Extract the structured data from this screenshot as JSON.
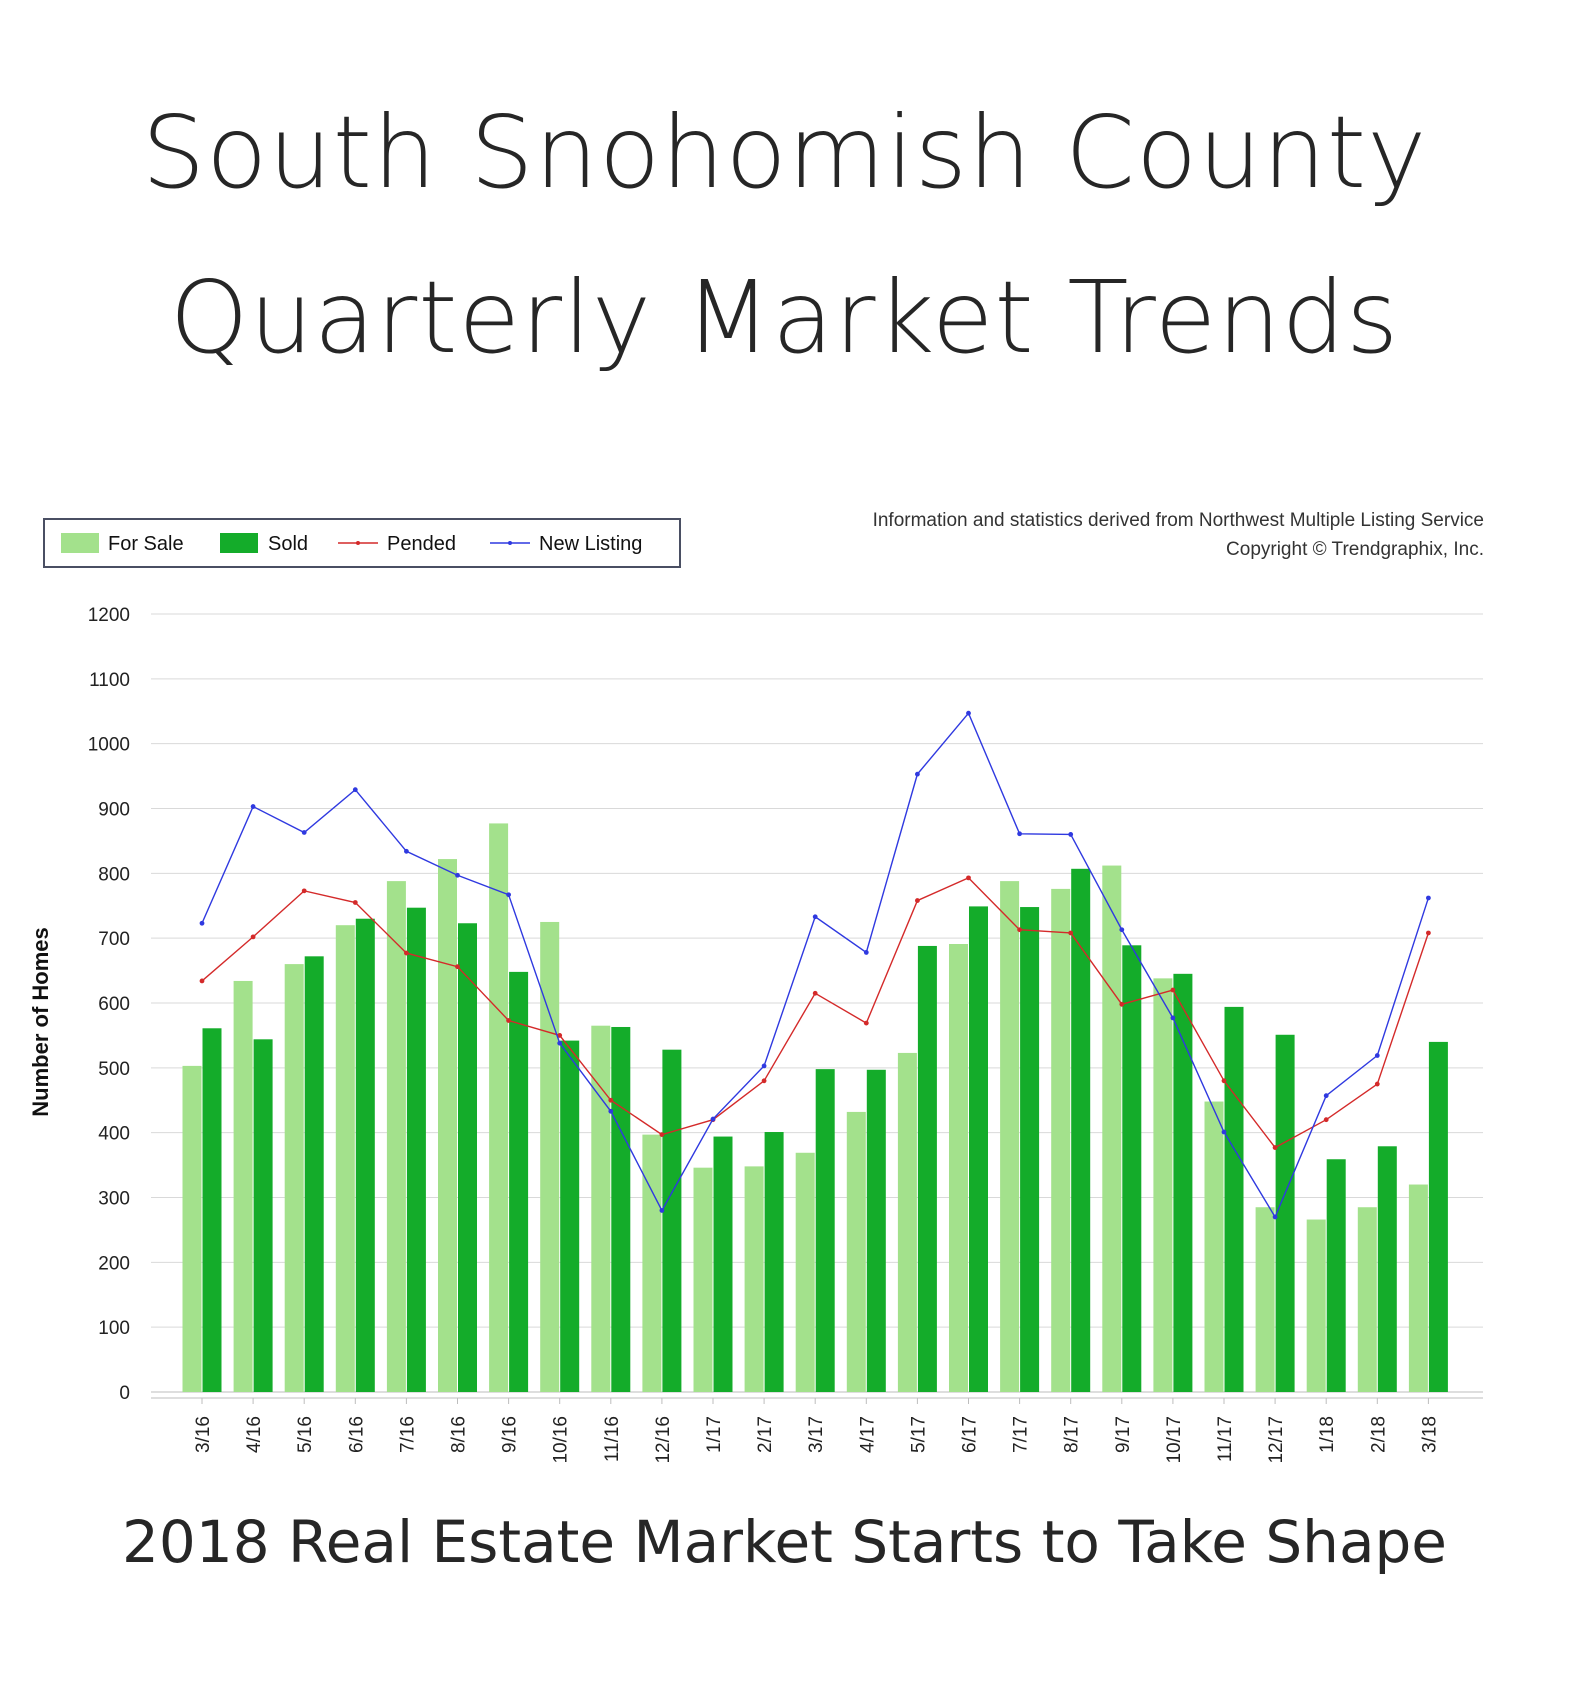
{
  "header": {
    "title_line1": "South Snohomish County",
    "title_line2": "Quarterly Market Trends"
  },
  "source": {
    "line1": "Information and statistics derived from Northwest Multiple Listing Service",
    "line2": "Copyright © Trendgraphix, Inc."
  },
  "footer": {
    "subtitle": "2018 Real Estate Market Starts to Take Shape"
  },
  "colors": {
    "for_sale": "#a3e18c",
    "sold": "#14ac2a",
    "pended": "#d42a2a",
    "new_listing": "#2f39e0",
    "grid": "#d9d9d9"
  },
  "chart_data": {
    "type": "bar",
    "ylabel": "Number of Homes",
    "ylim": [
      0,
      1200
    ],
    "yticks": [
      0,
      100,
      200,
      300,
      400,
      500,
      600,
      700,
      800,
      900,
      1000,
      1100,
      1200
    ],
    "grid": true,
    "legend": "top-left",
    "categories": [
      "3/16",
      "4/16",
      "5/16",
      "6/16",
      "7/16",
      "8/16",
      "9/16",
      "10/16",
      "11/16",
      "12/16",
      "1/17",
      "2/17",
      "3/17",
      "4/17",
      "5/17",
      "6/17",
      "7/17",
      "8/17",
      "9/17",
      "10/17",
      "11/17",
      "12/17",
      "1/18",
      "2/18",
      "3/18"
    ],
    "series": [
      {
        "name": "For Sale",
        "kind": "bar",
        "values": [
          503,
          634,
          660,
          720,
          788,
          822,
          877,
          725,
          565,
          397,
          346,
          348,
          369,
          432,
          523,
          691,
          788,
          776,
          812,
          638,
          448,
          285,
          266,
          285,
          320
        ]
      },
      {
        "name": "Sold",
        "kind": "bar",
        "values": [
          561,
          544,
          672,
          730,
          747,
          723,
          648,
          542,
          563,
          528,
          394,
          401,
          498,
          497,
          688,
          749,
          748,
          807,
          689,
          645,
          594,
          551,
          359,
          379,
          540
        ]
      },
      {
        "name": "Pended",
        "kind": "line",
        "values": [
          634,
          702,
          773,
          755,
          677,
          656,
          573,
          550,
          450,
          397,
          420,
          480,
          615,
          569,
          758,
          793,
          713,
          708,
          598,
          620,
          480,
          377,
          420,
          475,
          708
        ]
      },
      {
        "name": "New Listing",
        "kind": "line",
        "values": [
          723,
          903,
          863,
          929,
          834,
          797,
          767,
          538,
          433,
          280,
          421,
          503,
          733,
          678,
          953,
          1047,
          861,
          860,
          713,
          577,
          401,
          270,
          457,
          519,
          762
        ]
      }
    ]
  }
}
